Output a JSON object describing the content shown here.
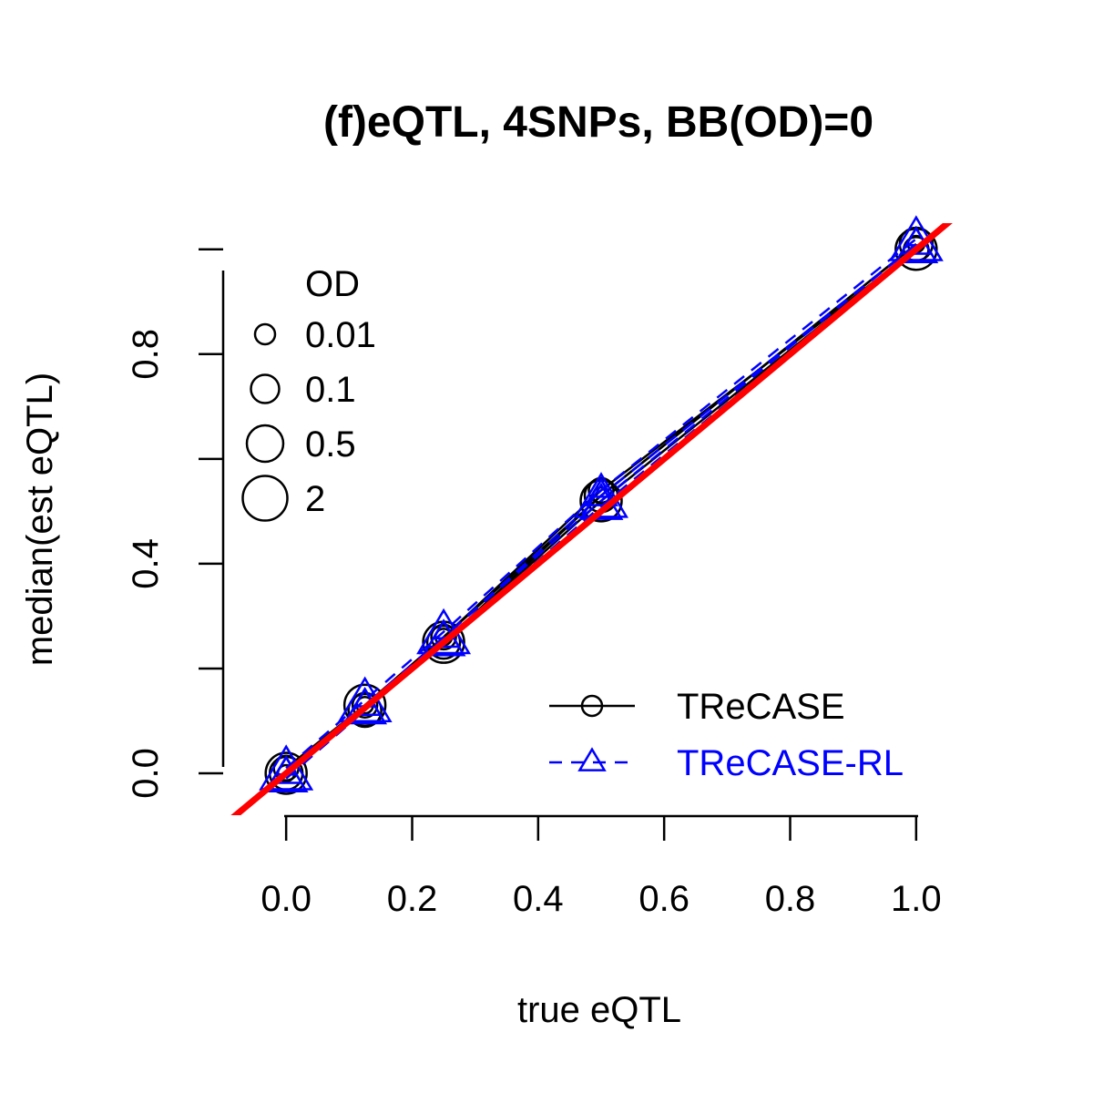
{
  "chart_data": {
    "type": "line",
    "title": "(f)eQTL, 4SNPs, BB(OD)=0",
    "xlabel": "true eQTL",
    "ylabel": "median(est eQTL)",
    "xlim": [
      -0.1,
      1.1
    ],
    "ylim": [
      -0.08,
      1.05
    ],
    "xticks": [
      0.0,
      0.2,
      0.4,
      0.6,
      0.8,
      1.0
    ],
    "xtick_labels": [
      "0.0",
      "0.2",
      "0.4",
      "0.6",
      "0.8",
      "1.0"
    ],
    "yticks": [
      0.0,
      0.2,
      0.4,
      0.6,
      0.8,
      1.0
    ],
    "ytick_labels": [
      "0.0",
      "0.4",
      "0.8"
    ],
    "ytick_label_values": [
      0.0,
      0.4,
      0.8
    ],
    "x": [
      0.0,
      0.125,
      0.25,
      0.5,
      1.0
    ],
    "series": [
      {
        "name": "TReCASE",
        "marker": "circle",
        "linestyle": "solid",
        "color": "#000000",
        "by_od": [
          {
            "od": "0.01",
            "values": [
              0.0,
              0.13,
              0.26,
              0.53,
              1.01
            ]
          },
          {
            "od": "0.1",
            "values": [
              0.01,
              0.13,
              0.26,
              0.54,
              1.0
            ]
          },
          {
            "od": "0.5",
            "values": [
              0.0,
              0.12,
              0.25,
              0.53,
              1.01
            ]
          },
          {
            "od": "2",
            "values": [
              0.0,
              0.13,
              0.25,
              0.52,
              1.0
            ]
          }
        ]
      },
      {
        "name": "TReCASE-RL",
        "marker": "triangle",
        "linestyle": "dashed",
        "color": "#0000ff",
        "by_od": [
          {
            "od": "0.01",
            "values": [
              0.01,
              0.14,
              0.27,
              0.54,
              1.02
            ]
          },
          {
            "od": "0.1",
            "values": [
              0.0,
              0.13,
              0.26,
              0.53,
              1.01
            ]
          },
          {
            "od": "0.5",
            "values": [
              -0.01,
              0.12,
              0.25,
              0.51,
              1.0
            ]
          },
          {
            "od": "2",
            "values": [
              0.0,
              0.13,
              0.26,
              0.52,
              1.01
            ]
          }
        ]
      }
    ],
    "reference_line": {
      "slope": 1,
      "intercept": 0,
      "color": "#ff0000"
    },
    "size_legend": {
      "title": "OD",
      "entries": [
        {
          "label": "0.01",
          "scale": 0.5
        },
        {
          "label": "0.1",
          "scale": 0.75
        },
        {
          "label": "0.5",
          "scale": 1.0
        },
        {
          "label": "2",
          "scale": 1.25
        }
      ],
      "placement": "top-left"
    },
    "series_legend_placement": "bottom-right",
    "grid": false
  }
}
